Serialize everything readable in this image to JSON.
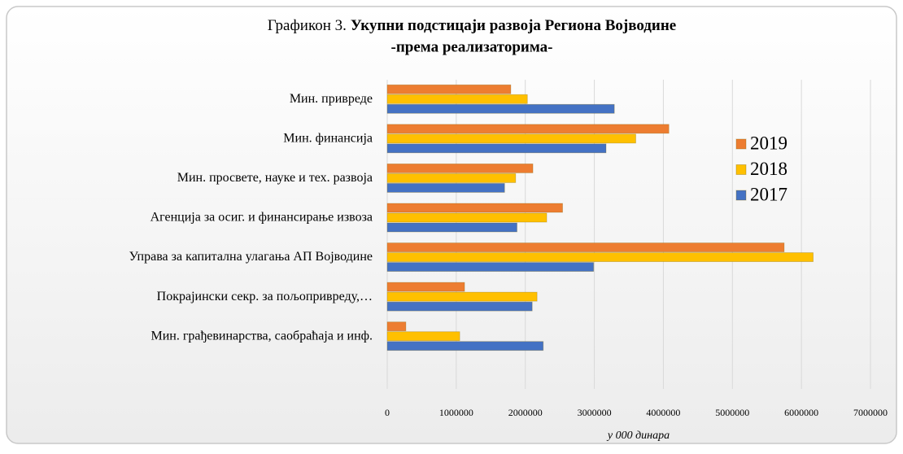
{
  "chart_data": {
    "type": "bar",
    "orientation": "horizontal",
    "title_label": "Графикон 3.",
    "title": "Укупни подстицаји развоја Региона Војводине",
    "subtitle": "-према реализаторима-",
    "x_label": "у 000 динара",
    "categories": [
      "Мин. привреде",
      "Мин. финансија",
      "Мин. просвете, науке и тех. развоја",
      "Агенција за осиг. и финансирање извоза",
      "Управа за капитална улагања АП Војводине",
      "Покрајински секр. за пољопривреду,…",
      "Мин. грађевинарства, саобраћаја и инф."
    ],
    "series": [
      {
        "name": "2019",
        "color": "#ed7d31",
        "values": [
          1790000,
          4080000,
          2110000,
          2540000,
          5750000,
          1120000,
          270000
        ]
      },
      {
        "name": "2018",
        "color": "#ffc000",
        "values": [
          2030000,
          3600000,
          1860000,
          2310000,
          6170000,
          2170000,
          1050000
        ]
      },
      {
        "name": "2017",
        "color": "#4472c4",
        "values": [
          3290000,
          3170000,
          1700000,
          1880000,
          2990000,
          2100000,
          2260000
        ]
      }
    ],
    "xlim": [
      0,
      7000000
    ],
    "xticks": [
      0,
      1000000,
      2000000,
      3000000,
      4000000,
      5000000,
      6000000,
      7000000
    ],
    "grid": true,
    "legend": "right"
  }
}
